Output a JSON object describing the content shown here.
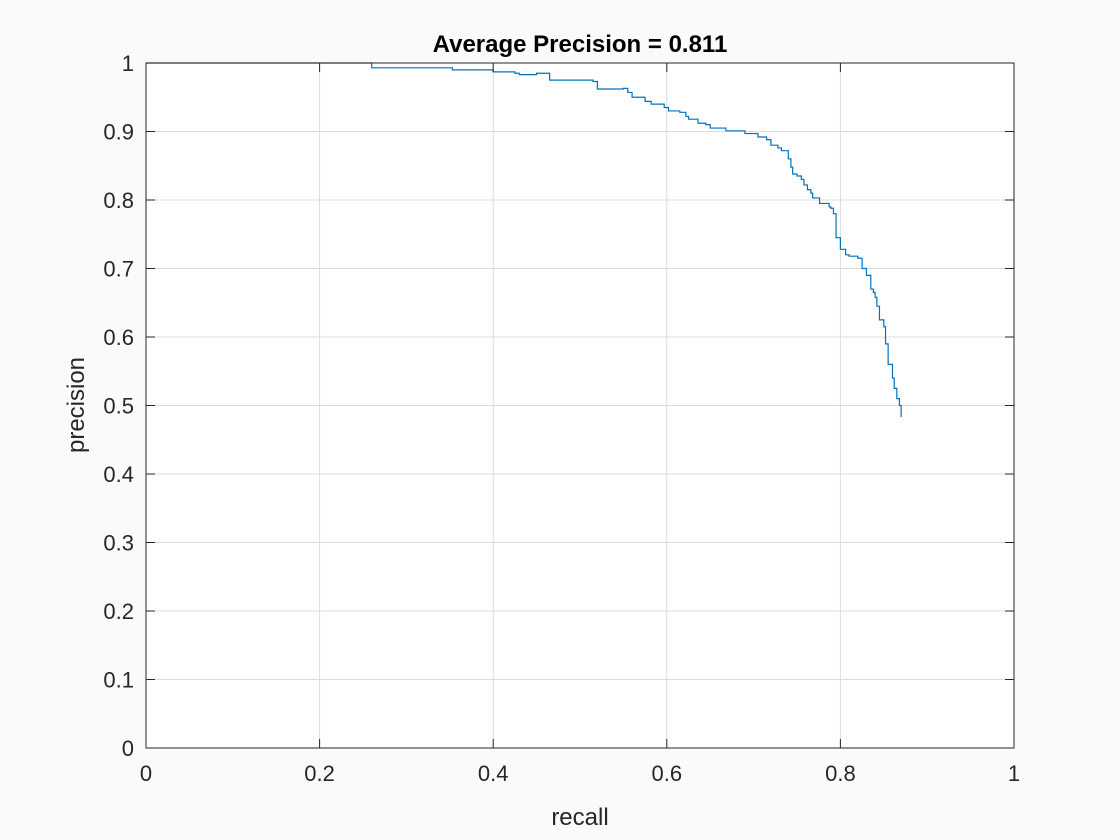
{
  "chart_data": {
    "type": "line",
    "title": "Average Precision = 0.811",
    "xlabel": "recall",
    "ylabel": "precision",
    "xlim": [
      0,
      1
    ],
    "ylim": [
      0,
      1
    ],
    "xticks": [
      0,
      0.2,
      0.4,
      0.6,
      0.8,
      1
    ],
    "xtick_labels": [
      "0",
      "0.2",
      "0.4",
      "0.6",
      "0.8",
      "1"
    ],
    "yticks": [
      0,
      0.1,
      0.2,
      0.3,
      0.4,
      0.5,
      0.6,
      0.7,
      0.8,
      0.9,
      1
    ],
    "ytick_labels": [
      "0",
      "0.1",
      "0.2",
      "0.3",
      "0.4",
      "0.5",
      "0.6",
      "0.7",
      "0.8",
      "0.9",
      "1"
    ],
    "grid": true,
    "colors": {
      "line": "#0072bd",
      "background": "#fafafa",
      "axes": "#ffffff",
      "grid": "#dcdcdc"
    },
    "series": [
      {
        "x": [
          0.0,
          0.26,
          0.26,
          0.353,
          0.353,
          0.4,
          0.4,
          0.425,
          0.43,
          0.45,
          0.465,
          0.5,
          0.515,
          0.52,
          0.55,
          0.555,
          0.56,
          0.575,
          0.582,
          0.597,
          0.602,
          0.615,
          0.622,
          0.625,
          0.636,
          0.645,
          0.65,
          0.668,
          0.69,
          0.705,
          0.715,
          0.72,
          0.728,
          0.73,
          0.732,
          0.74,
          0.743,
          0.745,
          0.75,
          0.755,
          0.758,
          0.762,
          0.766,
          0.768,
          0.776,
          0.787,
          0.789,
          0.792,
          0.795,
          0.8,
          0.806,
          0.81,
          0.818,
          0.82,
          0.825,
          0.83,
          0.835,
          0.838,
          0.84,
          0.842,
          0.845,
          0.85,
          0.852,
          0.855,
          0.86,
          0.862,
          0.865,
          0.868,
          0.87
        ],
        "y": [
          1.0,
          1.0,
          0.993,
          0.993,
          0.99,
          0.99,
          0.987,
          0.985,
          0.983,
          0.985,
          0.975,
          0.975,
          0.973,
          0.962,
          0.963,
          0.957,
          0.95,
          0.944,
          0.94,
          0.935,
          0.93,
          0.928,
          0.922,
          0.918,
          0.912,
          0.91,
          0.905,
          0.901,
          0.897,
          0.892,
          0.888,
          0.88,
          0.876,
          0.876,
          0.872,
          0.86,
          0.848,
          0.838,
          0.835,
          0.83,
          0.822,
          0.815,
          0.81,
          0.803,
          0.795,
          0.79,
          0.788,
          0.78,
          0.745,
          0.728,
          0.72,
          0.718,
          0.718,
          0.715,
          0.7,
          0.69,
          0.67,
          0.665,
          0.658,
          0.645,
          0.625,
          0.615,
          0.59,
          0.56,
          0.54,
          0.525,
          0.51,
          0.5,
          0.483
        ]
      }
    ]
  }
}
